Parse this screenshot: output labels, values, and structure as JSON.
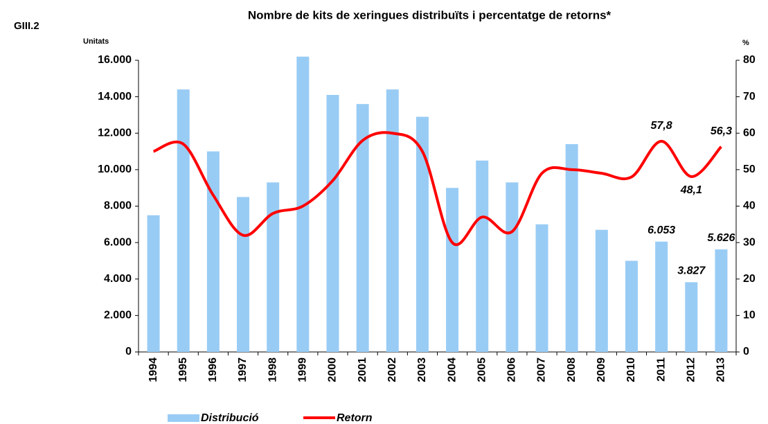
{
  "chart_data": {
    "type": "bar_line",
    "label": "GIII.2",
    "title": "Nombre de kits de xeringues distribuïts i percentatge de retorns*",
    "ylabel": "Unitats",
    "y2label": "%",
    "categories": [
      "1994",
      "1995",
      "1996",
      "1997",
      "1998",
      "1999",
      "2000",
      "2001",
      "2002",
      "2003",
      "2004",
      "2005",
      "2006",
      "2007",
      "2008",
      "2009",
      "2010",
      "2011",
      "2012",
      "2013"
    ],
    "series": [
      {
        "name": "Distribució",
        "type": "bar",
        "color": "#99ccf5",
        "values": [
          7500,
          14400,
          11000,
          8500,
          9300,
          16200,
          14100,
          13600,
          14400,
          12900,
          9000,
          10500,
          9300,
          7000,
          11400,
          6700,
          5000,
          6053,
          3827,
          5626
        ],
        "value_labels": [
          null,
          null,
          null,
          null,
          null,
          null,
          null,
          null,
          null,
          null,
          null,
          null,
          null,
          null,
          null,
          null,
          null,
          "6.053",
          "3.827",
          "5.626"
        ]
      },
      {
        "name": "Retorn",
        "type": "line",
        "axis": "y2",
        "color": "#ff0000",
        "values": [
          55,
          57,
          43,
          32,
          38,
          40,
          47,
          58,
          60,
          55,
          30,
          37,
          33,
          49,
          50,
          49,
          48,
          57.8,
          48.1,
          56.3
        ],
        "value_labels": [
          null,
          null,
          null,
          null,
          null,
          null,
          null,
          null,
          null,
          null,
          null,
          null,
          null,
          null,
          null,
          null,
          null,
          "57,8",
          "48,1",
          "56,3"
        ]
      }
    ],
    "ylim": [
      0,
      16000
    ],
    "yticks": [
      {
        "value": 0,
        "label": "0"
      },
      {
        "value": 2000,
        "label": "2.000"
      },
      {
        "value": 4000,
        "label": "4.000"
      },
      {
        "value": 6000,
        "label": "6.000"
      },
      {
        "value": 8000,
        "label": "8.000"
      },
      {
        "value": 10000,
        "label": "10.000"
      },
      {
        "value": 12000,
        "label": "12.000"
      },
      {
        "value": 14000,
        "label": "14.000"
      },
      {
        "value": 16000,
        "label": "16.000"
      }
    ],
    "y2lim": [
      0,
      80
    ],
    "y2ticks": [
      0,
      10,
      20,
      30,
      40,
      50,
      60,
      70,
      80
    ],
    "grid": false,
    "legend": "bottom"
  }
}
